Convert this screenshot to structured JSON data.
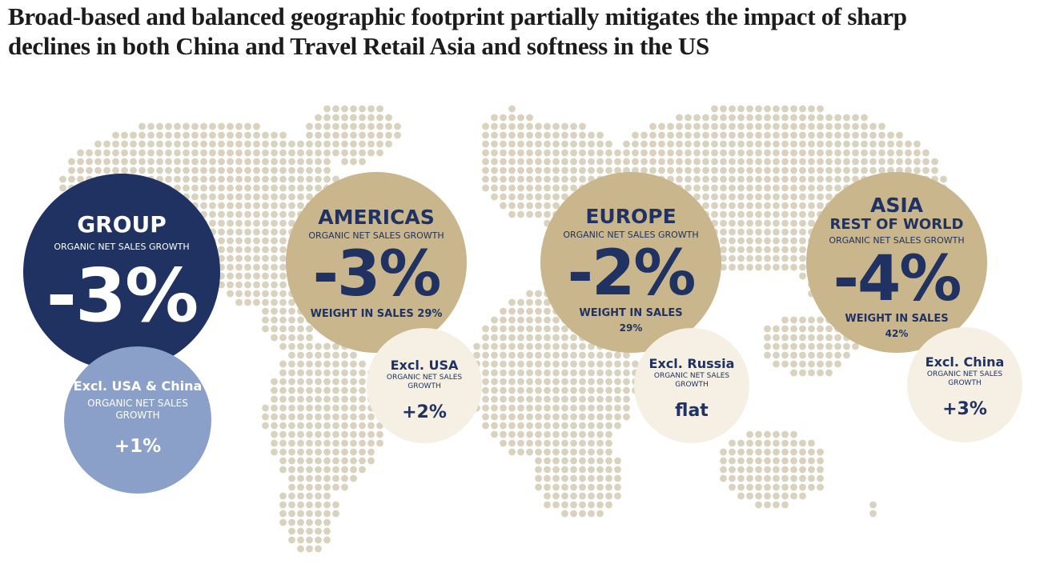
{
  "title": "Broad-based and balanced geographic footprint partially mitigates the impact of sharp declines in both China and Travel Retail Asia and softness in the US",
  "regions": [
    {
      "name": "GROUP",
      "metric": "ORGANIC NET SALES GROWTH",
      "value": "-3%",
      "excl": {
        "label": "Excl. USA & China",
        "metric": "ORGANIC NET SALES GROWTH",
        "value": "+1%"
      }
    },
    {
      "name": "AMERICAS",
      "metric": "ORGANIC NET SALES GROWTH",
      "value": "-3%",
      "weight_label": "WEIGHT IN SALES",
      "weight": "29%",
      "excl": {
        "label": "Excl. USA",
        "metric": "ORGANIC NET SALES GROWTH",
        "value": "+2%"
      }
    },
    {
      "name": "EUROPE",
      "metric": "ORGANIC NET SALES GROWTH",
      "value": "-2%",
      "weight_label": "WEIGHT IN SALES",
      "weight": "29%",
      "excl": {
        "label": "Excl. Russia",
        "metric": "ORGANIC NET SALES GROWTH",
        "value": "flat"
      }
    },
    {
      "name": "ASIA",
      "subname": "REST OF WORLD",
      "metric": "ORGANIC NET SALES GROWTH",
      "value": "-4%",
      "weight_label": "WEIGHT IN SALES",
      "weight": "42%",
      "excl": {
        "label": "Excl. China",
        "metric": "ORGANIC NET SALES GROWTH",
        "value": "+3%"
      }
    }
  ]
}
